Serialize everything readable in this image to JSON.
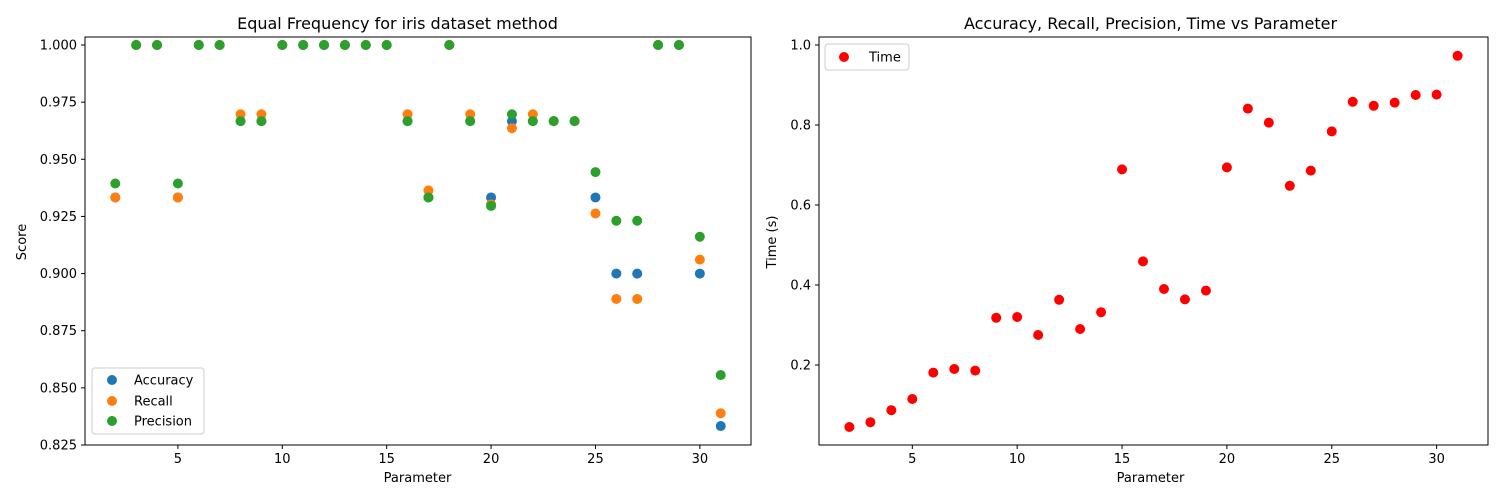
{
  "chart_data": [
    {
      "type": "scatter",
      "title": "Equal Frequency for iris dataset method",
      "xlabel": "Parameter",
      "ylabel": "Score",
      "xlim": [
        0.55,
        32.45
      ],
      "ylim": [
        0.825,
        1.0035
      ],
      "xticks": [
        5,
        10,
        15,
        20,
        25,
        30
      ],
      "yticks": [
        0.825,
        0.85,
        0.875,
        0.9,
        0.925,
        0.95,
        0.975,
        1.0
      ],
      "ytick_labels": [
        "0.825",
        "0.850",
        "0.875",
        "0.900",
        "0.925",
        "0.950",
        "0.975",
        "1.000"
      ],
      "legend_position": "lower-left",
      "x": [
        2,
        3,
        4,
        5,
        6,
        7,
        8,
        9,
        10,
        11,
        12,
        13,
        14,
        15,
        16,
        17,
        18,
        19,
        20,
        21,
        22,
        23,
        24,
        25,
        26,
        27,
        28,
        29,
        30,
        31
      ],
      "series": [
        {
          "name": "Accuracy",
          "color": "#1f77b4",
          "values": [
            0.9333,
            1.0,
            1.0,
            0.9333,
            1.0,
            1.0,
            0.9667,
            0.9667,
            1.0,
            1.0,
            1.0,
            1.0,
            1.0,
            1.0,
            0.9667,
            0.9333,
            1.0,
            0.9667,
            0.9333,
            0.9667,
            0.9667,
            0.9667,
            0.9667,
            0.9333,
            0.9,
            0.9,
            1.0,
            1.0,
            0.9,
            0.8333
          ]
        },
        {
          "name": "Recall",
          "color": "#ff7f0e",
          "values": [
            0.9333,
            1.0,
            1.0,
            0.9333,
            1.0,
            1.0,
            0.9697,
            0.9697,
            1.0,
            1.0,
            1.0,
            1.0,
            1.0,
            1.0,
            0.9697,
            0.9364,
            1.0,
            0.9697,
            0.9303,
            0.9636,
            0.9697,
            0.9667,
            0.9667,
            0.9263,
            0.8889,
            0.8889,
            1.0,
            1.0,
            0.9061,
            0.8389
          ]
        },
        {
          "name": "Precision",
          "color": "#2ca02c",
          "values": [
            0.9394,
            1.0,
            1.0,
            0.9394,
            1.0,
            1.0,
            0.9667,
            0.9667,
            1.0,
            1.0,
            1.0,
            1.0,
            1.0,
            1.0,
            0.9667,
            0.9333,
            1.0,
            0.9667,
            0.9296,
            0.9697,
            0.9667,
            0.9667,
            0.9667,
            0.9444,
            0.9231,
            0.9231,
            1.0,
            1.0,
            0.9161,
            0.8556
          ]
        }
      ]
    },
    {
      "type": "scatter",
      "title": "Accuracy, Recall, Precision, Time vs Parameter",
      "xlabel": "Parameter",
      "ylabel": "Time (s)",
      "xlim": [
        0.55,
        32.45
      ],
      "ylim": [
        0.0,
        1.02
      ],
      "xticks": [
        5,
        10,
        15,
        20,
        25,
        30
      ],
      "yticks": [
        0.2,
        0.4,
        0.6,
        0.8,
        1.0
      ],
      "ytick_labels": [
        "0.2",
        "0.4",
        "0.6",
        "0.8",
        "1.0"
      ],
      "legend_position": "upper-left",
      "x": [
        2,
        3,
        4,
        5,
        6,
        7,
        8,
        9,
        10,
        11,
        12,
        13,
        14,
        15,
        16,
        17,
        18,
        19,
        20,
        21,
        22,
        23,
        24,
        25,
        26,
        27,
        28,
        29,
        30,
        31
      ],
      "series": [
        {
          "name": "Time",
          "color": "#ff0000",
          "values": [
            0.045,
            0.057,
            0.087,
            0.115,
            0.181,
            0.19,
            0.186,
            0.318,
            0.32,
            0.275,
            0.363,
            0.29,
            0.332,
            0.689,
            0.459,
            0.39,
            0.364,
            0.386,
            0.694,
            0.841,
            0.806,
            0.648,
            0.686,
            0.784,
            0.858,
            0.848,
            0.856,
            0.875,
            0.876,
            0.973
          ]
        }
      ]
    }
  ]
}
